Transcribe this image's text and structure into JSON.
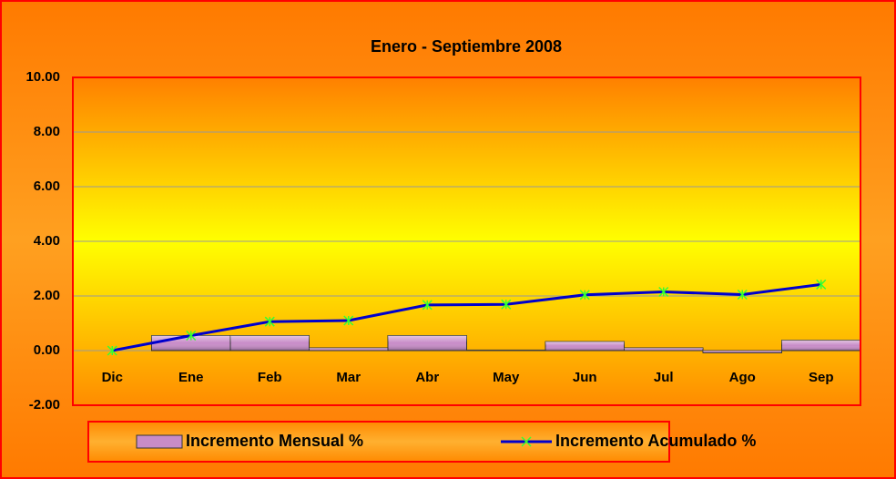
{
  "chart_data": {
    "type": "bar-line",
    "title": "Enero -  Septiembre 2008",
    "categories": [
      "Dic",
      "Ene",
      "Feb",
      "Mar",
      "Abr",
      "May",
      "Jun",
      "Jul",
      "Ago",
      "Sep"
    ],
    "series": [
      {
        "name": "Incremento Mensual %",
        "type": "bar",
        "color": "#c88cc8",
        "values": [
          0,
          0.55,
          0.55,
          0.1,
          0.55,
          0.02,
          0.33,
          0.1,
          -0.08,
          0.38
        ]
      },
      {
        "name": "Incremento Acumulado %",
        "type": "line",
        "color": "#0000cc",
        "marker_color": "#33ff33",
        "values": [
          0,
          0.55,
          1.06,
          1.1,
          1.67,
          1.69,
          2.04,
          2.15,
          2.05,
          2.42
        ]
      }
    ],
    "ylim": [
      -2,
      10
    ],
    "yticks": [
      {
        "value": -2,
        "label": "-2.00"
      },
      {
        "value": 0,
        "label": "0.00"
      },
      {
        "value": 2,
        "label": "2.00"
      },
      {
        "value": 4,
        "label": "4.00"
      },
      {
        "value": 6,
        "label": "6.00"
      },
      {
        "value": 8,
        "label": "8.00"
      },
      {
        "value": 10,
        "label": "10.00"
      }
    ],
    "grid": true,
    "legend": "bottom"
  }
}
